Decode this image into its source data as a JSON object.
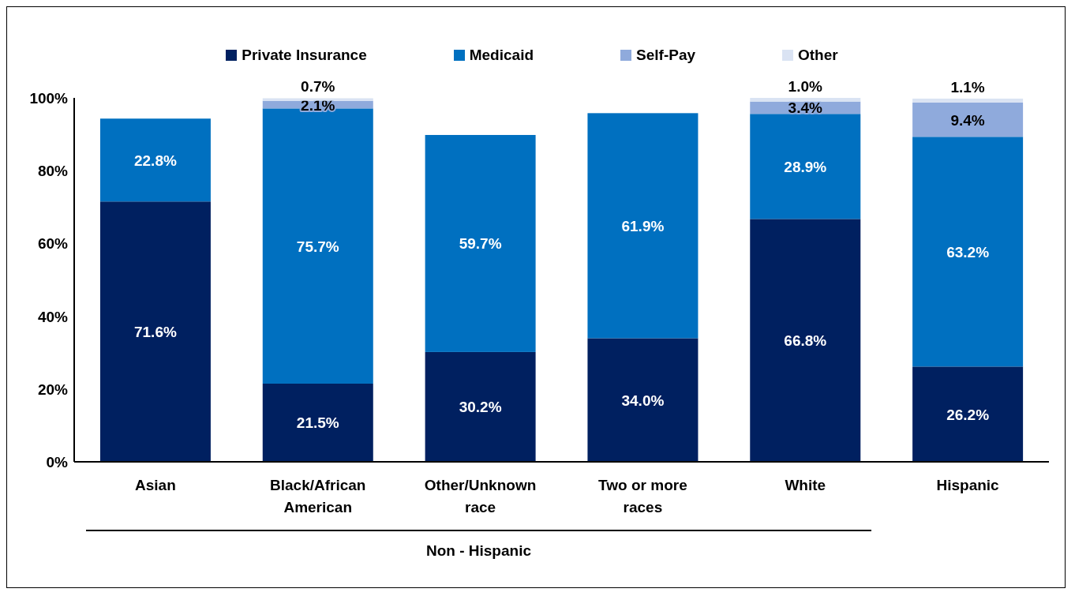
{
  "chart_data": {
    "type": "bar",
    "stacked": true,
    "categories": [
      "Asian",
      "Black/African American",
      "Other/Unknown race",
      "Two or more races",
      "White",
      "Hispanic"
    ],
    "series": [
      {
        "name": "Private Insurance",
        "color": "#002060",
        "values": [
          71.6,
          21.5,
          30.2,
          34.0,
          66.8,
          26.2
        ],
        "value_labels": [
          "71.6%",
          "21.5%",
          "30.2%",
          "34.0%",
          "66.8%",
          "26.2%"
        ]
      },
      {
        "name": "Medicaid",
        "color": "#0070c0",
        "values": [
          22.8,
          75.7,
          59.7,
          61.9,
          28.9,
          63.2
        ],
        "value_labels": [
          "22.8%",
          "75.7%",
          "59.7%",
          "61.9%",
          "28.9%",
          "63.2%"
        ]
      },
      {
        "name": "Self-Pay",
        "color": "#8faadc",
        "values": [
          null,
          2.1,
          null,
          null,
          3.4,
          9.4
        ],
        "value_labels": [
          null,
          "2.1%",
          null,
          null,
          "3.4%",
          "9.4%"
        ]
      },
      {
        "name": "Other",
        "color": "#dae3f3",
        "values": [
          null,
          0.7,
          null,
          null,
          1.0,
          1.1
        ],
        "value_labels": [
          null,
          "0.7%",
          null,
          null,
          "1.0%",
          "1.1%"
        ]
      }
    ],
    "ylim": [
      0,
      100
    ],
    "yticks": [
      {
        "value": 0,
        "label": "0%"
      },
      {
        "value": 20,
        "label": "20%"
      },
      {
        "value": 40,
        "label": "40%"
      },
      {
        "value": 60,
        "label": "60%"
      },
      {
        "value": 80,
        "label": "80%"
      },
      {
        "value": 100,
        "label": "100%"
      }
    ],
    "grid": false,
    "legend": "top",
    "annotations": [
      "Non - Hispanic"
    ]
  }
}
